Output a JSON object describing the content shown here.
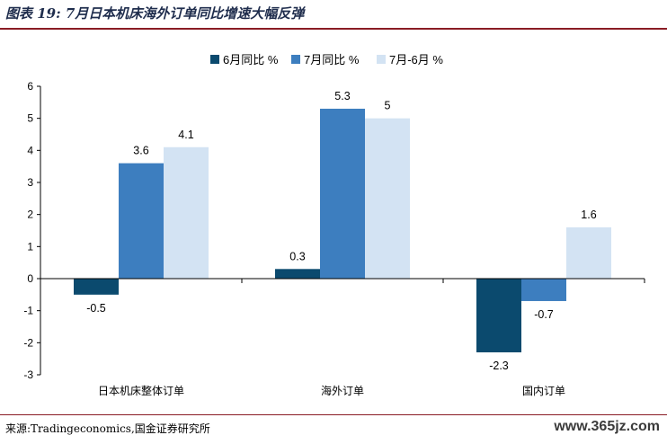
{
  "header": {
    "title": "图表 19:  7月日本机床海外订单同比增速大幅反弹"
  },
  "chart_data": {
    "type": "bar",
    "title": "",
    "xlabel": "",
    "ylabel": "",
    "ylim": [
      -3,
      6
    ],
    "yticks": [
      6,
      5,
      4,
      3,
      2,
      1,
      0,
      -1,
      -2,
      -3
    ],
    "grid": false,
    "legend_position": "top",
    "categories": [
      "日本机床整体订单",
      "海外订单",
      "国内订单"
    ],
    "series": [
      {
        "name": "6月同比 %",
        "color": "#0b4a6e",
        "values": [
          -0.5,
          0.3,
          -2.3
        ],
        "labels": [
          "-0.5",
          "0.3",
          "-2.3"
        ]
      },
      {
        "name": "7月同比 %",
        "color": "#3d7ebf",
        "values": [
          3.6,
          5.3,
          -0.7
        ],
        "labels": [
          "3.6",
          "5.3",
          "-0.7"
        ]
      },
      {
        "name": "7月-6月 %",
        "color": "#d3e3f3",
        "values": [
          4.1,
          5,
          1.6
        ],
        "labels": [
          "4.1",
          "5",
          "1.6"
        ]
      }
    ]
  },
  "footer": {
    "source": "来源:Tradingeconomics,国金证券研究所",
    "watermark": "www.365jz.com"
  }
}
